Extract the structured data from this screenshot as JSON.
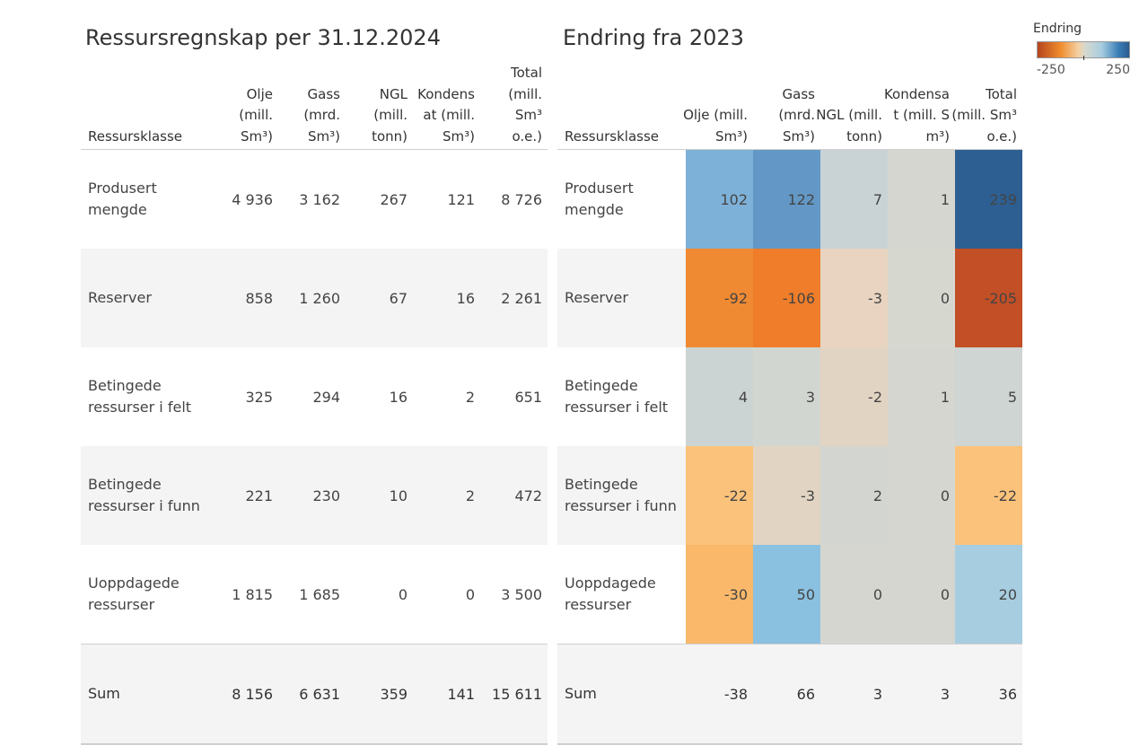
{
  "left_title": "Ressursregnskap per 31.12.2024",
  "right_title": "Endring fra 2023",
  "legend": {
    "title": "Endring",
    "min": "-250",
    "max": "250"
  },
  "left_table": {
    "headers": [
      "Ressursklasse",
      "Olje\n(mill.\nSm³)",
      "Gass\n(mrd.\nSm³)",
      "NGL\n(mill.\ntonn)",
      "Kondens\nat (mill.\nSm³)",
      "Total\n(mill.\nSm³\no.e.)"
    ],
    "rows": [
      {
        "label": "Produsert\nmengde",
        "values": [
          "4 936",
          "3 162",
          "267",
          "121",
          "8 726"
        ]
      },
      {
        "label": "Reserver",
        "values": [
          "858",
          "1 260",
          "67",
          "16",
          "2 261"
        ]
      },
      {
        "label": "Betingede\nressurser i felt",
        "values": [
          "325",
          "294",
          "16",
          "2",
          "651"
        ]
      },
      {
        "label": "Betingede\nressurser i funn",
        "values": [
          "221",
          "230",
          "10",
          "2",
          "472"
        ]
      },
      {
        "label": "Uoppdagede\nressurser",
        "values": [
          "1 815",
          "1 685",
          "0",
          "0",
          "3 500"
        ]
      },
      {
        "label": "Sum",
        "values": [
          "8 156",
          "6 631",
          "359",
          "141",
          "15 611"
        ]
      }
    ]
  },
  "right_table": {
    "headers": [
      "Ressursklasse",
      "Olje (mill.\nSm³)",
      "Gass\n(mrd.\nSm³)",
      "NGL (mill.\ntonn)",
      "Kondensa\nt (mill. S\nm³)",
      "Total\n(mill. Sm³\no.e.)"
    ],
    "rows": [
      {
        "label": "Produsert\nmengde",
        "values": [
          "102",
          "122",
          "7",
          "1",
          "239"
        ],
        "colors": [
          "#7eb1d8",
          "#6398c6",
          "#c9d3d6",
          "#d6d6d0",
          "#2d5f92"
        ]
      },
      {
        "label": "Reserver",
        "values": [
          "-92",
          "-106",
          "-3",
          "0",
          "-205"
        ],
        "colors": [
          "#f08a32",
          "#ef7d2a",
          "#e8d4c0",
          "#d6d8cf",
          "#c24f26"
        ]
      },
      {
        "label": "Betingede\nressurser i felt",
        "values": [
          "4",
          "3",
          "-2",
          "1",
          "5"
        ],
        "colors": [
          "#ccd4d3",
          "#d2d6d1",
          "#e2d4c2",
          "#d6d6d0",
          "#ced5d2"
        ]
      },
      {
        "label": "Betingede\nressurser i funn",
        "values": [
          "-22",
          "-3",
          "2",
          "0",
          "-22"
        ],
        "colors": [
          "#fbc27b",
          "#e2d4c2",
          "#d3d6d0",
          "#d6d6d0",
          "#fbc27b"
        ]
      },
      {
        "label": "Uoppdagede\nressurser",
        "values": [
          "-30",
          "50",
          "0",
          "0",
          "20"
        ],
        "colors": [
          "#f9b86a",
          "#8ac0e0",
          "#d6d6d0",
          "#d6d6d0",
          "#a7cde0"
        ]
      },
      {
        "label": "Sum",
        "values": [
          "-38",
          "66",
          "3",
          "3",
          "36"
        ],
        "colors": [
          null,
          null,
          null,
          null,
          null
        ]
      }
    ]
  }
}
